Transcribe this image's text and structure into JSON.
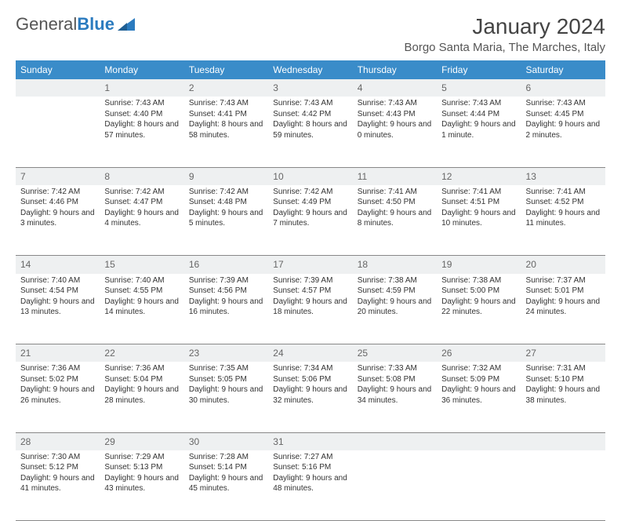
{
  "brand": {
    "part1": "General",
    "part2": "Blue"
  },
  "title": "January 2024",
  "location": "Borgo Santa Maria, The Marches, Italy",
  "colors": {
    "header_bg": "#3a8cc9",
    "header_text": "#ffffff",
    "daynum_bg": "#eef0f1",
    "border": "#888888",
    "brand_blue": "#2b7bbf"
  },
  "day_headers": [
    "Sunday",
    "Monday",
    "Tuesday",
    "Wednesday",
    "Thursday",
    "Friday",
    "Saturday"
  ],
  "weeks": [
    [
      {
        "n": "",
        "sr": "",
        "ss": "",
        "dl": ""
      },
      {
        "n": "1",
        "sr": "Sunrise: 7:43 AM",
        "ss": "Sunset: 4:40 PM",
        "dl": "Daylight: 8 hours and 57 minutes."
      },
      {
        "n": "2",
        "sr": "Sunrise: 7:43 AM",
        "ss": "Sunset: 4:41 PM",
        "dl": "Daylight: 8 hours and 58 minutes."
      },
      {
        "n": "3",
        "sr": "Sunrise: 7:43 AM",
        "ss": "Sunset: 4:42 PM",
        "dl": "Daylight: 8 hours and 59 minutes."
      },
      {
        "n": "4",
        "sr": "Sunrise: 7:43 AM",
        "ss": "Sunset: 4:43 PM",
        "dl": "Daylight: 9 hours and 0 minutes."
      },
      {
        "n": "5",
        "sr": "Sunrise: 7:43 AM",
        "ss": "Sunset: 4:44 PM",
        "dl": "Daylight: 9 hours and 1 minute."
      },
      {
        "n": "6",
        "sr": "Sunrise: 7:43 AM",
        "ss": "Sunset: 4:45 PM",
        "dl": "Daylight: 9 hours and 2 minutes."
      }
    ],
    [
      {
        "n": "7",
        "sr": "Sunrise: 7:42 AM",
        "ss": "Sunset: 4:46 PM",
        "dl": "Daylight: 9 hours and 3 minutes."
      },
      {
        "n": "8",
        "sr": "Sunrise: 7:42 AM",
        "ss": "Sunset: 4:47 PM",
        "dl": "Daylight: 9 hours and 4 minutes."
      },
      {
        "n": "9",
        "sr": "Sunrise: 7:42 AM",
        "ss": "Sunset: 4:48 PM",
        "dl": "Daylight: 9 hours and 5 minutes."
      },
      {
        "n": "10",
        "sr": "Sunrise: 7:42 AM",
        "ss": "Sunset: 4:49 PM",
        "dl": "Daylight: 9 hours and 7 minutes."
      },
      {
        "n": "11",
        "sr": "Sunrise: 7:41 AM",
        "ss": "Sunset: 4:50 PM",
        "dl": "Daylight: 9 hours and 8 minutes."
      },
      {
        "n": "12",
        "sr": "Sunrise: 7:41 AM",
        "ss": "Sunset: 4:51 PM",
        "dl": "Daylight: 9 hours and 10 minutes."
      },
      {
        "n": "13",
        "sr": "Sunrise: 7:41 AM",
        "ss": "Sunset: 4:52 PM",
        "dl": "Daylight: 9 hours and 11 minutes."
      }
    ],
    [
      {
        "n": "14",
        "sr": "Sunrise: 7:40 AM",
        "ss": "Sunset: 4:54 PM",
        "dl": "Daylight: 9 hours and 13 minutes."
      },
      {
        "n": "15",
        "sr": "Sunrise: 7:40 AM",
        "ss": "Sunset: 4:55 PM",
        "dl": "Daylight: 9 hours and 14 minutes."
      },
      {
        "n": "16",
        "sr": "Sunrise: 7:39 AM",
        "ss": "Sunset: 4:56 PM",
        "dl": "Daylight: 9 hours and 16 minutes."
      },
      {
        "n": "17",
        "sr": "Sunrise: 7:39 AM",
        "ss": "Sunset: 4:57 PM",
        "dl": "Daylight: 9 hours and 18 minutes."
      },
      {
        "n": "18",
        "sr": "Sunrise: 7:38 AM",
        "ss": "Sunset: 4:59 PM",
        "dl": "Daylight: 9 hours and 20 minutes."
      },
      {
        "n": "19",
        "sr": "Sunrise: 7:38 AM",
        "ss": "Sunset: 5:00 PM",
        "dl": "Daylight: 9 hours and 22 minutes."
      },
      {
        "n": "20",
        "sr": "Sunrise: 7:37 AM",
        "ss": "Sunset: 5:01 PM",
        "dl": "Daylight: 9 hours and 24 minutes."
      }
    ],
    [
      {
        "n": "21",
        "sr": "Sunrise: 7:36 AM",
        "ss": "Sunset: 5:02 PM",
        "dl": "Daylight: 9 hours and 26 minutes."
      },
      {
        "n": "22",
        "sr": "Sunrise: 7:36 AM",
        "ss": "Sunset: 5:04 PM",
        "dl": "Daylight: 9 hours and 28 minutes."
      },
      {
        "n": "23",
        "sr": "Sunrise: 7:35 AM",
        "ss": "Sunset: 5:05 PM",
        "dl": "Daylight: 9 hours and 30 minutes."
      },
      {
        "n": "24",
        "sr": "Sunrise: 7:34 AM",
        "ss": "Sunset: 5:06 PM",
        "dl": "Daylight: 9 hours and 32 minutes."
      },
      {
        "n": "25",
        "sr": "Sunrise: 7:33 AM",
        "ss": "Sunset: 5:08 PM",
        "dl": "Daylight: 9 hours and 34 minutes."
      },
      {
        "n": "26",
        "sr": "Sunrise: 7:32 AM",
        "ss": "Sunset: 5:09 PM",
        "dl": "Daylight: 9 hours and 36 minutes."
      },
      {
        "n": "27",
        "sr": "Sunrise: 7:31 AM",
        "ss": "Sunset: 5:10 PM",
        "dl": "Daylight: 9 hours and 38 minutes."
      }
    ],
    [
      {
        "n": "28",
        "sr": "Sunrise: 7:30 AM",
        "ss": "Sunset: 5:12 PM",
        "dl": "Daylight: 9 hours and 41 minutes."
      },
      {
        "n": "29",
        "sr": "Sunrise: 7:29 AM",
        "ss": "Sunset: 5:13 PM",
        "dl": "Daylight: 9 hours and 43 minutes."
      },
      {
        "n": "30",
        "sr": "Sunrise: 7:28 AM",
        "ss": "Sunset: 5:14 PM",
        "dl": "Daylight: 9 hours and 45 minutes."
      },
      {
        "n": "31",
        "sr": "Sunrise: 7:27 AM",
        "ss": "Sunset: 5:16 PM",
        "dl": "Daylight: 9 hours and 48 minutes."
      },
      {
        "n": "",
        "sr": "",
        "ss": "",
        "dl": ""
      },
      {
        "n": "",
        "sr": "",
        "ss": "",
        "dl": ""
      },
      {
        "n": "",
        "sr": "",
        "ss": "",
        "dl": ""
      }
    ]
  ]
}
